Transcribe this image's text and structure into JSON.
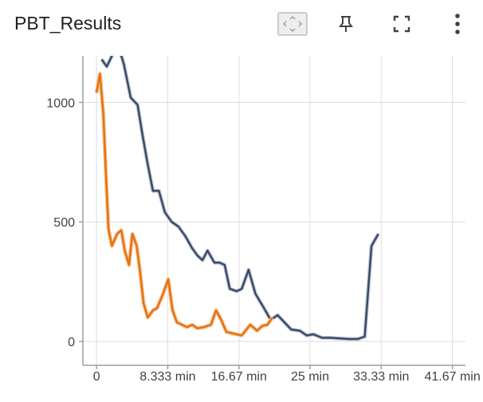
{
  "card": {
    "title": "PBT_Results",
    "toolbar": {
      "fit_icon": "fit-domain-icon",
      "pin_icon": "pin-icon",
      "fullscreen_icon": "fullscreen-icon",
      "more_icon": "more-vert-icon"
    }
  },
  "colors": {
    "series_dark": "#3c4a63",
    "series_dark_shadow": "#c3cedd",
    "series_orange": "#e8710a",
    "series_orange_shadow": "#f6c8a4",
    "grid": "#dddddd",
    "axis": "#9e9e9e"
  },
  "chart_data": {
    "type": "line",
    "title": "PBT_Results",
    "xlabel": "",
    "ylabel": "",
    "x_ticks": [
      {
        "value": 0,
        "label": "0"
      },
      {
        "value": 8.333,
        "label": "8.333 min"
      },
      {
        "value": 16.67,
        "label": "16.67 min"
      },
      {
        "value": 25,
        "label": "25 min"
      },
      {
        "value": 33.33,
        "label": "33.33 min"
      },
      {
        "value": 41.67,
        "label": "41.67 min"
      }
    ],
    "y_ticks": [
      {
        "value": 0,
        "label": "0"
      },
      {
        "value": 500,
        "label": "500"
      },
      {
        "value": 1000,
        "label": "1000"
      }
    ],
    "xlim": [
      -1.6,
      43.2
    ],
    "ylim": [
      -100,
      1195
    ],
    "grid": true,
    "series": [
      {
        "color_key": "series_dark",
        "points": [
          [
            0.6,
            1180
          ],
          [
            1.2,
            1150
          ],
          [
            2.0,
            1210
          ],
          [
            2.6,
            1230
          ],
          [
            3.2,
            1160
          ],
          [
            4.0,
            1020
          ],
          [
            4.8,
            990
          ],
          [
            5.4,
            860
          ],
          [
            6.0,
            740
          ],
          [
            6.6,
            630
          ],
          [
            7.3,
            630
          ],
          [
            8.0,
            540
          ],
          [
            8.8,
            500
          ],
          [
            9.6,
            480
          ],
          [
            10.4,
            440
          ],
          [
            11.2,
            390
          ],
          [
            11.8,
            360
          ],
          [
            12.4,
            340
          ],
          [
            13.0,
            380
          ],
          [
            13.8,
            330
          ],
          [
            14.4,
            330
          ],
          [
            15.0,
            320
          ],
          [
            15.6,
            220
          ],
          [
            16.4,
            210
          ],
          [
            17.0,
            220
          ],
          [
            17.8,
            300
          ],
          [
            18.6,
            200
          ],
          [
            19.6,
            140
          ],
          [
            20.4,
            90
          ],
          [
            21.2,
            110
          ],
          [
            22.0,
            80
          ],
          [
            22.8,
            50
          ],
          [
            23.8,
            45
          ],
          [
            24.6,
            25
          ],
          [
            25.4,
            30
          ],
          [
            26.4,
            15
          ],
          [
            27.4,
            15
          ],
          [
            28.6,
            12
          ],
          [
            29.6,
            10
          ],
          [
            30.6,
            10
          ],
          [
            31.4,
            20
          ],
          [
            32.2,
            400
          ],
          [
            33.0,
            450
          ]
        ]
      },
      {
        "color_key": "series_orange",
        "points": [
          [
            0.0,
            1040
          ],
          [
            0.4,
            1120
          ],
          [
            0.8,
            950
          ],
          [
            1.1,
            700
          ],
          [
            1.4,
            470
          ],
          [
            1.8,
            400
          ],
          [
            2.4,
            450
          ],
          [
            2.9,
            465
          ],
          [
            3.3,
            380
          ],
          [
            3.8,
            320
          ],
          [
            4.2,
            450
          ],
          [
            4.7,
            400
          ],
          [
            5.1,
            290
          ],
          [
            5.5,
            160
          ],
          [
            6.0,
            100
          ],
          [
            6.6,
            130
          ],
          [
            7.1,
            140
          ],
          [
            7.8,
            200
          ],
          [
            8.4,
            260
          ],
          [
            8.9,
            130
          ],
          [
            9.4,
            80
          ],
          [
            10.0,
            70
          ],
          [
            10.6,
            60
          ],
          [
            11.2,
            70
          ],
          [
            11.8,
            55
          ],
          [
            12.6,
            60
          ],
          [
            13.4,
            70
          ],
          [
            14.0,
            130
          ],
          [
            14.6,
            90
          ],
          [
            15.2,
            40
          ],
          [
            15.8,
            35
          ],
          [
            16.4,
            30
          ],
          [
            17.0,
            25
          ],
          [
            18.0,
            70
          ],
          [
            18.8,
            45
          ],
          [
            19.4,
            65
          ],
          [
            20.0,
            70
          ],
          [
            20.6,
            100
          ]
        ]
      }
    ]
  }
}
